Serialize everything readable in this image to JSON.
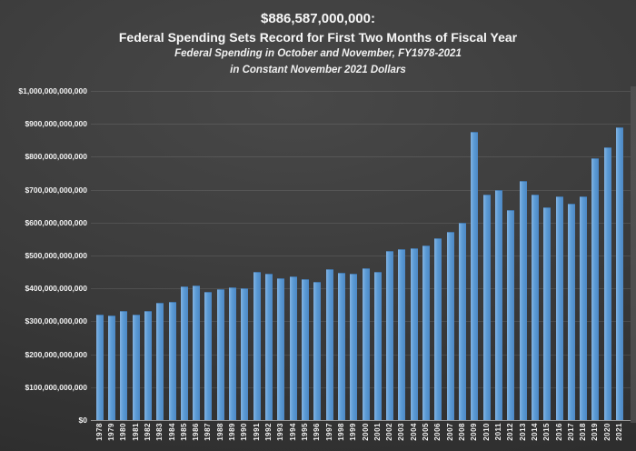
{
  "title": {
    "line1": "$886,587,000,000:",
    "line2": "Federal Spending Sets Record for First Two Months of Fiscal Year",
    "subtitle_line1": "Federal Spending in October and November, FY1978-2021",
    "subtitle_line2": "in Constant November 2021 Dollars"
  },
  "chart_data": {
    "type": "bar",
    "title": "$886,587,000,000: Federal Spending Sets Record for First Two Months of Fiscal Year",
    "subtitle": "Federal Spending in October and November, FY1978-2021 in Constant November 2021 Dollars",
    "unit": "billions of constant November 2021 dollars",
    "record_value_label": "$886,587,000,000",
    "categories": [
      1978,
      1979,
      1980,
      1981,
      1982,
      1983,
      1984,
      1985,
      1986,
      1987,
      1988,
      1989,
      1990,
      1991,
      1992,
      1993,
      1994,
      1995,
      1996,
      1997,
      1998,
      1999,
      2000,
      2001,
      2002,
      2003,
      2004,
      2005,
      2006,
      2007,
      2008,
      2009,
      2010,
      2011,
      2012,
      2013,
      2014,
      2015,
      2016,
      2017,
      2018,
      2019,
      2020,
      2021
    ],
    "values_billions": [
      318,
      316,
      328,
      319,
      330,
      354,
      357,
      404,
      406,
      388,
      396,
      400,
      397,
      448,
      441,
      427,
      434,
      425,
      416,
      457,
      446,
      443,
      459,
      448,
      512,
      517,
      519,
      529,
      549,
      570,
      598,
      872,
      681,
      695,
      636,
      725,
      683,
      645,
      677,
      655,
      678,
      792,
      825,
      886.587
    ],
    "y_ticks": [
      "$0",
      "$100,000,000,000",
      "$200,000,000,000",
      "$300,000,000,000",
      "$400,000,000,000",
      "$500,000,000,000",
      "$600,000,000,000",
      "$700,000,000,000",
      "$800,000,000,000",
      "$900,000,000,000",
      "$1,000,000,000,000"
    ],
    "ylim_billions": [
      0,
      1000
    ],
    "grid": true,
    "legend_position": "none",
    "bar_color": "#5b9bd5",
    "background_color": "#3a3a3a",
    "gridline_color": "#4f4f4f",
    "axis_line_color": "#9a9a9a",
    "label_color": "#f2f2f2"
  }
}
